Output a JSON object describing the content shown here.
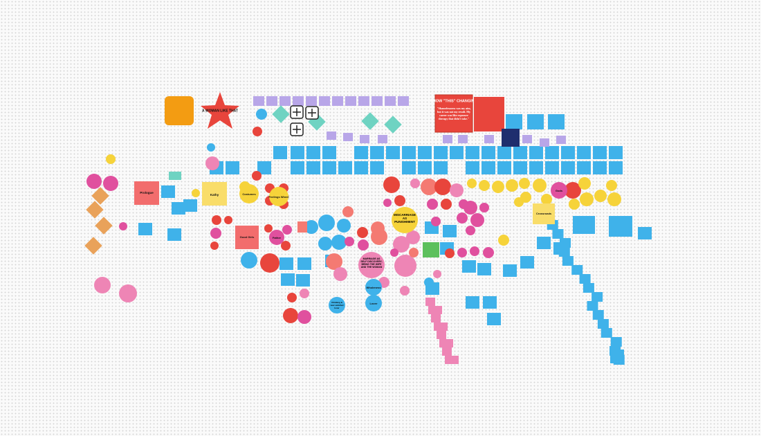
{
  "notes": {
    "star": "A WOMAN LIKE THAT",
    "show_title": "SHOW \"THIS\" CHANGING",
    "show_quote": "\"Shamelessness was my aim, but it was not my result. My career was like exposure therapy that didn't take.\"",
    "miscarriage": "MISCARRIAGE AS PUNISHMENT",
    "marriage": "MARRIAGE AS SELF DISCOVERY; BRING THE WIFE AND THE WOMAN",
    "wholeness": "Wholeness",
    "lover": "Lover",
    "prologue": "Prologue",
    "kathy": "Kathy",
    "costumes": "Costumes",
    "feelings": "Feelings Wheel",
    "good_girls": "Good Girls",
    "father": "Father",
    "crossroads": "Crossroads",
    "gods": "Gods",
    "climbing": "Climbing & new satisfied lover"
  }
}
